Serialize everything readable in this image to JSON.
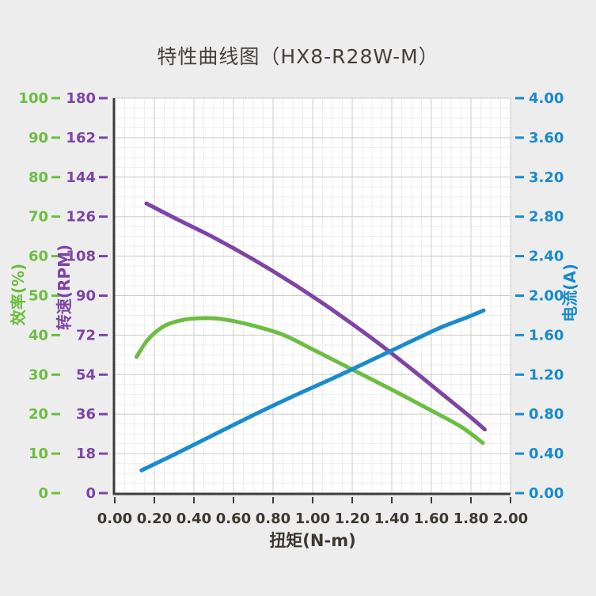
{
  "page": {
    "background": "#ededed"
  },
  "header": {
    "title": "特性曲线图（HX8-R28W-M）"
  },
  "chart_data": {
    "type": "line",
    "title": "特性曲线图（HX8-R28W-M）",
    "xlabel": "扭矩(N-m)",
    "xlim": [
      0,
      2
    ],
    "x_tick_labels": [
      "0.00",
      "0.20",
      "0.40",
      "0.60",
      "0.80",
      "1.00",
      "1.20",
      "1.40",
      "1.60",
      "1.80",
      "2.00"
    ],
    "plot_bg": "#ffffff",
    "spine_color": "#3d3d3d",
    "text_color": "#3e3730",
    "grid": {
      "major_color": "#cccccc",
      "minor_color": "#ededed",
      "x_divisions": 10,
      "y_divisions": 10,
      "minor_per_major": 4
    },
    "axes": [
      {
        "id": "efficiency",
        "label": "效率(%)",
        "color": "#6cbd41",
        "lim": [
          0,
          100
        ],
        "tick_labels": [
          "0",
          "10",
          "20",
          "30",
          "40",
          "50",
          "60",
          "70",
          "80",
          "90",
          "100"
        ]
      },
      {
        "id": "speed",
        "label": "转速(RPM)",
        "color": "#7d44a5",
        "lim": [
          0,
          180
        ],
        "tick_labels": [
          "0",
          "18",
          "36",
          "54",
          "72",
          "90",
          "108",
          "126",
          "144",
          "162",
          "180"
        ]
      },
      {
        "id": "current",
        "label": "电流(A)",
        "color": "#178bcd",
        "lim": [
          0,
          4
        ],
        "tick_labels": [
          "0.00",
          "0.40",
          "0.80",
          "1.20",
          "1.60",
          "2.00",
          "2.40",
          "2.80",
          "3.20",
          "3.60",
          "4.00"
        ]
      }
    ],
    "series": [
      {
        "name": "转速(RPM)",
        "axis": "speed",
        "color": "#7d44a5",
        "points": [
          [
            0.16,
            132
          ],
          [
            0.3,
            125.5
          ],
          [
            0.5,
            116.5
          ],
          [
            0.7,
            106.5
          ],
          [
            0.9,
            95.5
          ],
          [
            1.1,
            83.5
          ],
          [
            1.3,
            70.5
          ],
          [
            1.5,
            56.5
          ],
          [
            1.65,
            45.5
          ],
          [
            1.78,
            36
          ],
          [
            1.87,
            29
          ]
        ]
      },
      {
        "name": "效率(%)",
        "axis": "efficiency",
        "color": "#6cbd41",
        "points": [
          [
            0.11,
            34.5
          ],
          [
            0.17,
            39
          ],
          [
            0.25,
            42.3
          ],
          [
            0.35,
            43.9
          ],
          [
            0.45,
            44.3
          ],
          [
            0.55,
            44
          ],
          [
            0.7,
            42.4
          ],
          [
            0.85,
            40.1
          ],
          [
            1.0,
            36.4
          ],
          [
            1.2,
            31.3
          ],
          [
            1.4,
            26.2
          ],
          [
            1.6,
            20.9
          ],
          [
            1.75,
            16.8
          ],
          [
            1.86,
            12.7
          ]
        ]
      },
      {
        "name": "电流(A)",
        "axis": "current",
        "color": "#178bcd",
        "points": [
          [
            0.135,
            0.23
          ],
          [
            0.3,
            0.39
          ],
          [
            0.5,
            0.59
          ],
          [
            0.7,
            0.79
          ],
          [
            0.9,
            0.98
          ],
          [
            1.1,
            1.16
          ],
          [
            1.3,
            1.35
          ],
          [
            1.5,
            1.54
          ],
          [
            1.65,
            1.68
          ],
          [
            1.78,
            1.78
          ],
          [
            1.864,
            1.85
          ]
        ]
      }
    ]
  }
}
